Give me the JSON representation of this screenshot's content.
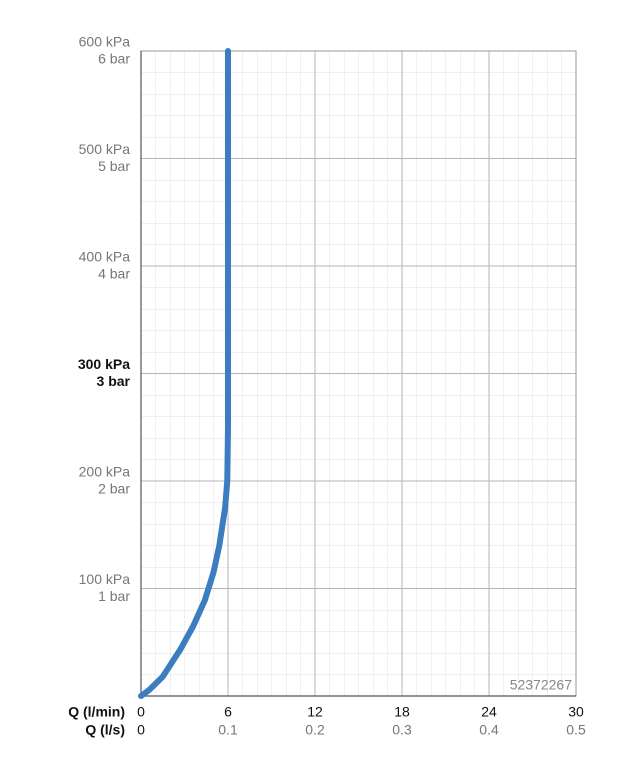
{
  "chart_data": {
    "type": "line",
    "x_label": "Q (l/min)",
    "x2_label": "Q (l/s)",
    "annotation": "52372267",
    "xlim": [
      0,
      30
    ],
    "xticks": [
      0,
      6,
      12,
      18,
      24,
      30
    ],
    "x2lim": [
      0,
      0.5
    ],
    "x2ticks": [
      0,
      0.1,
      0.2,
      0.3,
      0.4,
      0.5
    ],
    "ylim": [
      0,
      600
    ],
    "yticks": [
      {
        "value": 100,
        "label": "100 kPa"
      },
      {
        "value": 200,
        "label": "200 kPa"
      },
      {
        "value": 300,
        "label": "300 kPa"
      },
      {
        "value": 400,
        "label": "400 kPa"
      },
      {
        "value": 500,
        "label": "500 kPa"
      },
      {
        "value": 600,
        "label": "600 kPa"
      }
    ],
    "y2lim": [
      0,
      6
    ],
    "y2ticks": [
      {
        "value": 1,
        "label": "1 bar"
      },
      {
        "value": 2,
        "label": "2 bar"
      },
      {
        "value": 3,
        "label": "3 bar"
      },
      {
        "value": 4,
        "label": "4 bar"
      },
      {
        "value": 5,
        "label": "5 bar"
      },
      {
        "value": 6,
        "label": "6 bar"
      }
    ],
    "highlight_y": 300,
    "grid": true,
    "series": [
      {
        "color": "#3b7dc0",
        "x": [
          0,
          0.6,
          1.5,
          2.7,
          3.6,
          4.4,
          5.0,
          5.4,
          5.8,
          5.95,
          6,
          6
        ],
        "values": [
          0,
          6,
          18,
          43,
          65,
          89,
          115,
          140,
          175,
          200,
          250,
          600
        ]
      }
    ]
  }
}
